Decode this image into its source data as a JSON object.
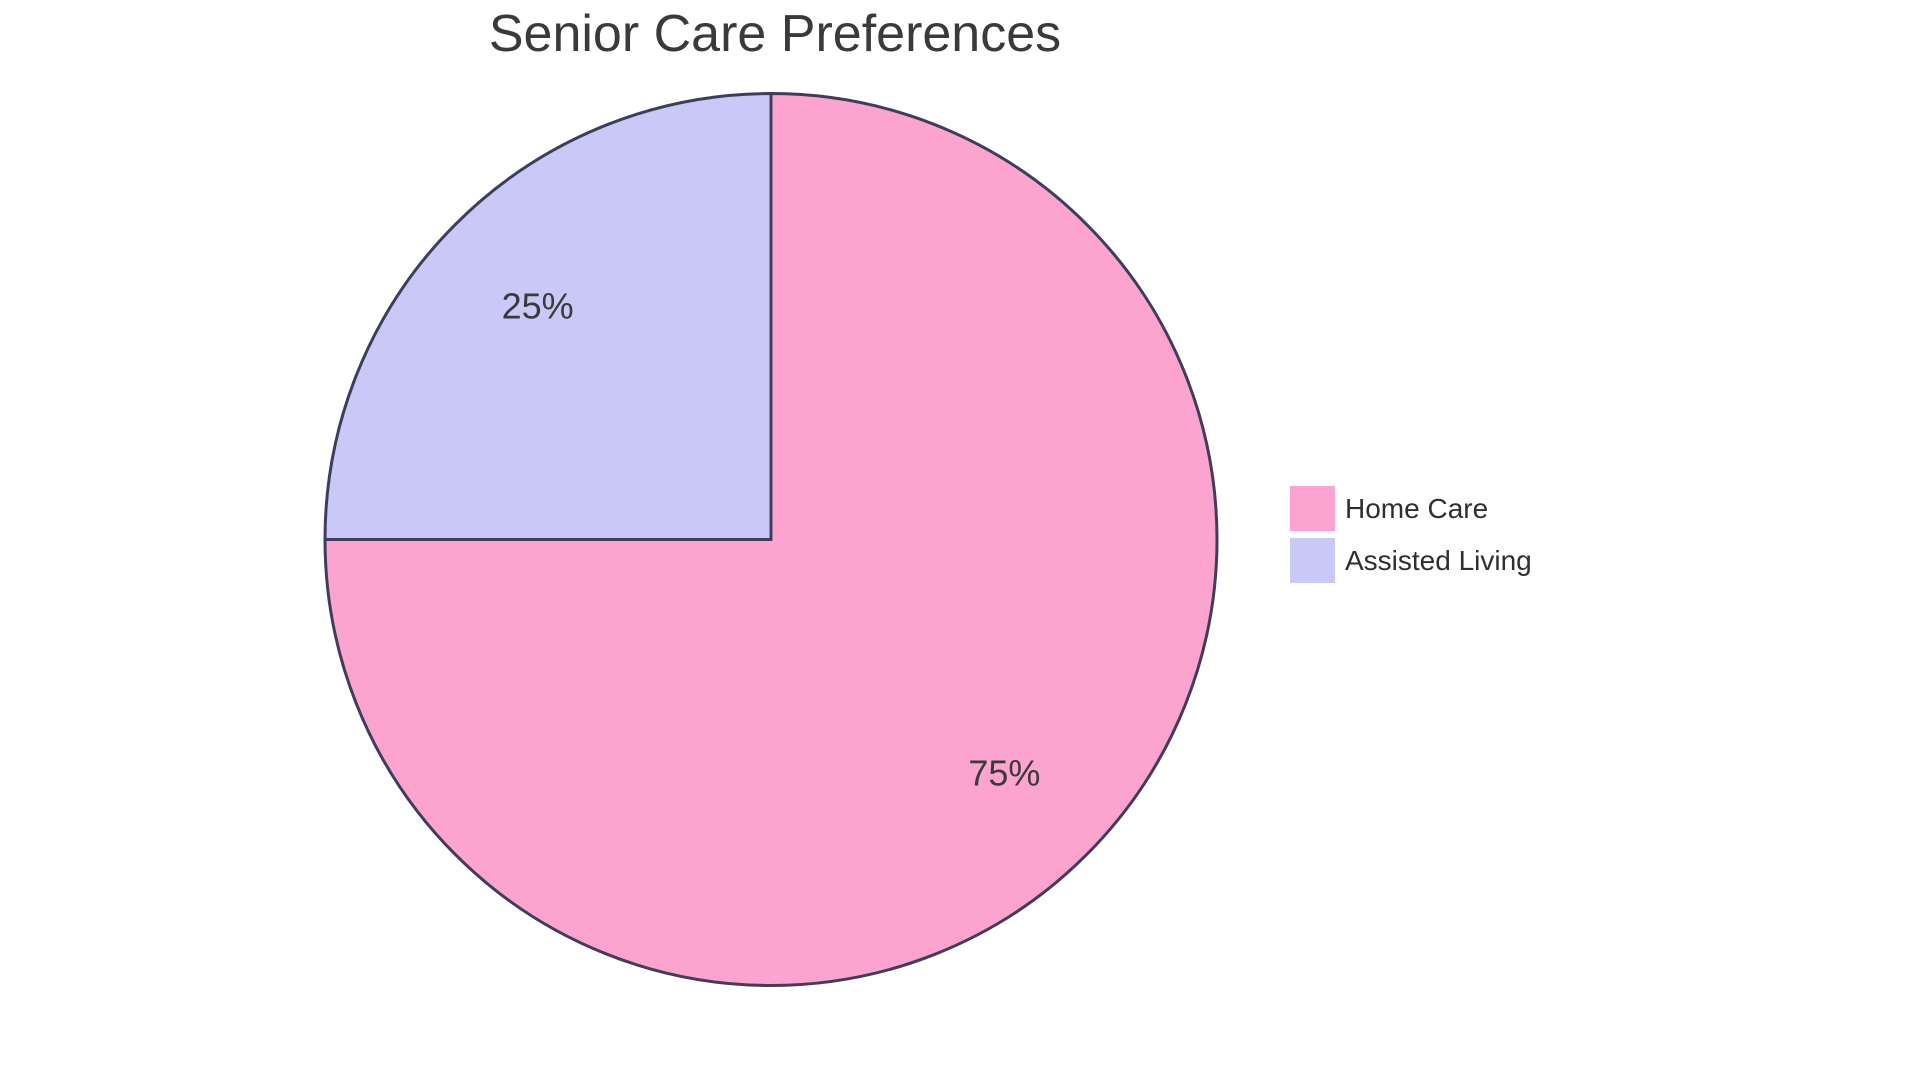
{
  "page": {
    "background_color": "#FFFFFF"
  },
  "chart_data": {
    "type": "pie",
    "title": "Senior Care Preferences",
    "labels": [
      "Home Care",
      "Assisted Living"
    ],
    "values": [
      75,
      25
    ],
    "slice_labels": [
      "75%",
      "25%"
    ],
    "colors": [
      "#FCA3CF",
      "#C9C8F7"
    ],
    "stroke_color": "#3E3E5C",
    "stroke_width": 3,
    "slice_label_color": "#3A3A3A",
    "title_color": "#3A3A3A",
    "legend_text_color": "#2F2F2F",
    "legend_position": "right",
    "start_angle_deg": -90,
    "direction": "clockwise"
  }
}
